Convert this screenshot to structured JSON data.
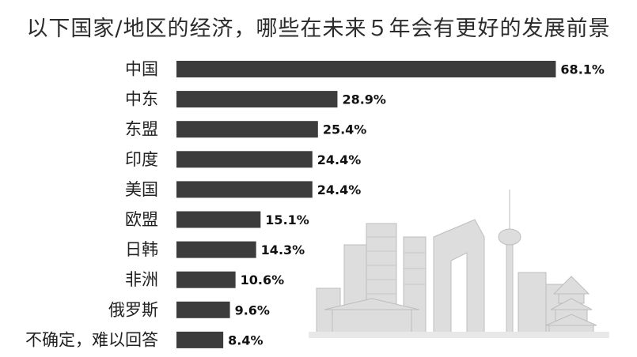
{
  "title": "以下国家/地区的经济，哪些在未来５年会有更好的发展前景",
  "colors": {
    "bar": "#3c3c3c",
    "text": "#222222",
    "skyline": "#cfcfcf"
  },
  "chart_data": {
    "type": "bar",
    "orientation": "horizontal",
    "title": "以下国家/地区的经济，哪些在未来５年会有更好的发展前景",
    "categories": [
      "中国",
      "中东",
      "东盟",
      "印度",
      "美国",
      "欧盟",
      "日韩",
      "非洲",
      "俄罗斯",
      "不确定，难以回答"
    ],
    "values": [
      68.1,
      28.9,
      25.4,
      24.4,
      24.4,
      15.1,
      14.3,
      10.6,
      9.6,
      8.4
    ],
    "value_labels": [
      "68.1%",
      "28.9%",
      "25.4%",
      "24.4%",
      "24.4%",
      "15.1%",
      "14.3%",
      "10.6%",
      "9.6%",
      "8.4%"
    ],
    "unit": "%",
    "xlim": [
      0,
      70
    ]
  }
}
